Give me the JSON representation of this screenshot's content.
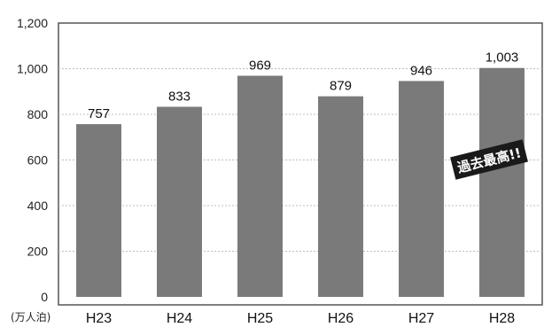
{
  "chart_data": {
    "type": "bar",
    "categories": [
      "H23",
      "H24",
      "H25",
      "H26",
      "H27",
      "H28"
    ],
    "values": [
      757,
      833,
      969,
      879,
      946,
      1003
    ],
    "value_labels": [
      "757",
      "833",
      "969",
      "879",
      "946",
      "1,003"
    ],
    "y_ticks": [
      0,
      200,
      400,
      600,
      800,
      1000,
      1200
    ],
    "y_tick_labels": [
      "0",
      "200",
      "400",
      "600",
      "800",
      "1,000",
      "1,200"
    ],
    "ylim": [
      0,
      1200
    ],
    "y_unit": "(万人泊)",
    "grid": true,
    "title": "",
    "xlabel": "",
    "ylabel": "",
    "annotation": {
      "text": "過去最高!!",
      "target_category": "H28"
    },
    "colors": {
      "bar": "#7a7a7a",
      "badge": "#1a1a1a",
      "grid": "#bdbdbd",
      "frame": "#555555"
    }
  }
}
